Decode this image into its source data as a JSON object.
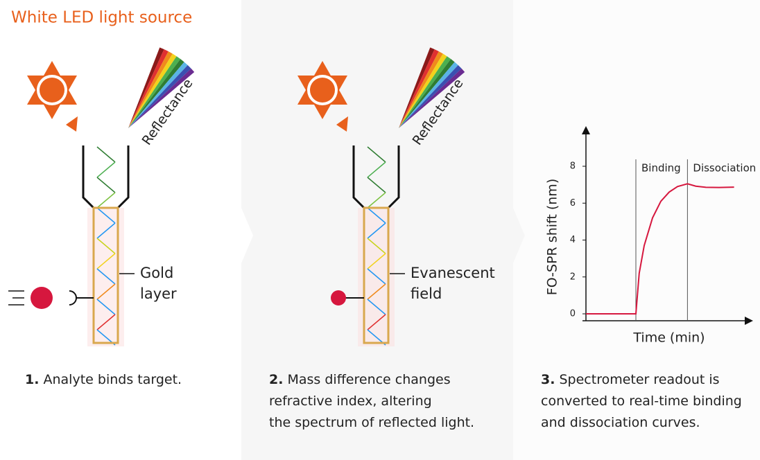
{
  "header": {
    "title": "White LED light source"
  },
  "panels": [
    {
      "reflectance": "Reflectance",
      "label_lines": [
        "Gold",
        "layer"
      ],
      "number": "1.",
      "caption_lines": [
        " Analyte binds target."
      ]
    },
    {
      "reflectance": "Reflectance",
      "label_lines": [
        "Evanescent",
        "field"
      ],
      "number": "2.",
      "caption_lines": [
        " Mass difference changes",
        "refractive index, altering",
        "the spectrum of reflected light."
      ]
    },
    {
      "number": "3.",
      "caption_lines": [
        " Spectrometer readout is",
        "converted to real-time binding",
        "and dissociation curves."
      ]
    }
  ],
  "chart_data": {
    "type": "line",
    "x_label": "Time (min)",
    "y_label": "FO-SPR shift (nm)",
    "xlim": [
      0,
      10
    ],
    "ylim": [
      0,
      8
    ],
    "yticks": [
      0,
      2,
      4,
      6,
      8
    ],
    "series": [
      {
        "color": "#d6173e",
        "x": [
          0,
          3,
          3.2,
          3.5,
          4,
          4.5,
          5,
          5.5,
          6.1,
          6.6,
          7.2,
          8,
          8.9
        ],
        "values": [
          0,
          0,
          2.2,
          3.7,
          5.2,
          6.1,
          6.6,
          6.9,
          7.05,
          6.92,
          6.86,
          6.85,
          6.87
        ]
      }
    ],
    "annotations": [
      {
        "x": 3,
        "text": "Binding"
      },
      {
        "x": 6.1,
        "text": "Dissociation"
      }
    ]
  }
}
